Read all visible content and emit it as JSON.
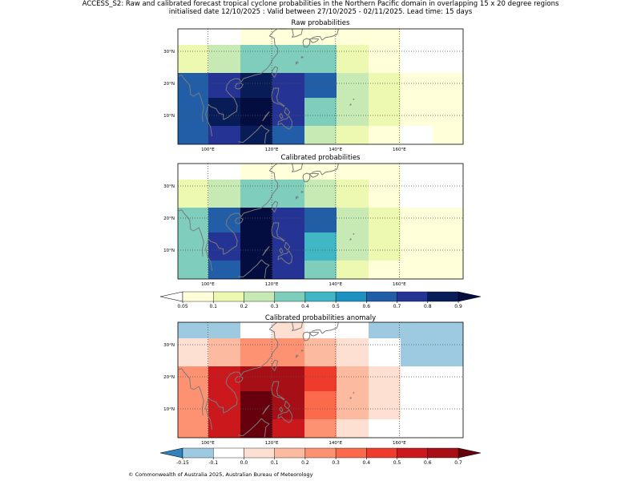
{
  "title_line1": "ACCESS_S2: Raw and calibrated forecast tropical cyclone probabilities in the Northern Pacific domain in overlapping 15 x 20 degree regions",
  "title_line2": "initialised date 12/10/2025 :  Valid between 27/10/2025 - 02/11/2025. Lead time: 15 days",
  "footer": "© Commonwealth of Australia 2025, Australian Bureau of Meteorology",
  "chart_data": [
    {
      "type": "heatmap",
      "title": "Raw probabilities",
      "x_ticks": [
        "100°E",
        "120°E",
        "140°E",
        "160°E"
      ],
      "y_ticks": [
        "30°N",
        "20°N",
        "10°N"
      ],
      "rows_north_to_south": [
        [
          null,
          null,
          0.05,
          0.05,
          0.05,
          0.05,
          0.05,
          null,
          null
        ],
        [
          0.1,
          0.2,
          0.3,
          0.3,
          0.3,
          0.1,
          0.05,
          null,
          null
        ],
        [
          0.6,
          0.7,
          0.8,
          0.7,
          0.6,
          0.2,
          0.1,
          0.05,
          0.05
        ],
        [
          0.6,
          0.8,
          0.9,
          0.7,
          0.3,
          0.2,
          0.1,
          0.05,
          0.05
        ],
        [
          0.6,
          0.7,
          0.8,
          0.6,
          0.2,
          0.1,
          0.05,
          null,
          0.05
        ]
      ]
    },
    {
      "type": "heatmap",
      "title": "Calibrated probabilities",
      "x_ticks": [
        "100°E",
        "120°E",
        "140°E",
        "160°E"
      ],
      "y_ticks": [
        "30°N",
        "20°N",
        "10°N"
      ],
      "rows_north_to_south": [
        [
          null,
          null,
          0.05,
          0.05,
          0.05,
          0.05,
          0.05,
          null,
          null
        ],
        [
          0.1,
          0.2,
          0.3,
          0.3,
          0.2,
          0.1,
          0.05,
          null,
          null
        ],
        [
          0.3,
          0.6,
          0.9,
          0.7,
          0.6,
          0.2,
          0.1,
          0.05,
          0.05
        ],
        [
          0.3,
          0.7,
          0.9,
          0.7,
          0.4,
          0.2,
          0.1,
          0.05,
          0.05
        ],
        [
          0.3,
          0.6,
          0.9,
          0.7,
          0.3,
          0.1,
          0.05,
          0.05,
          0.05
        ]
      ]
    },
    {
      "type": "heatmap",
      "title": "Calibrated probabilities anomaly",
      "x_ticks": [
        "100°E",
        "120°E",
        "140°E",
        "160°E"
      ],
      "y_ticks": [
        "30°N",
        "20°N",
        "10°N"
      ],
      "rows_north_to_south": [
        [
          -0.15,
          -0.15,
          -0.1,
          0.0,
          -0.1,
          -0.1,
          -0.15,
          -0.15,
          -0.15
        ],
        [
          0.0,
          0.1,
          0.2,
          0.2,
          0.1,
          0.0,
          -0.1,
          -0.15,
          -0.15
        ],
        [
          0.2,
          0.5,
          0.6,
          0.6,
          0.4,
          0.1,
          0.0,
          -0.1,
          -0.1
        ],
        [
          0.2,
          0.5,
          0.7,
          0.6,
          0.3,
          0.1,
          0.0,
          -0.1,
          -0.1
        ],
        [
          0.2,
          0.5,
          0.7,
          0.5,
          0.2,
          0.0,
          -0.1,
          -0.1,
          -0.1
        ]
      ]
    }
  ],
  "prob_colorbar": {
    "boundaries": [
      0.05,
      0.1,
      0.2,
      0.3,
      0.4,
      0.5,
      0.6,
      0.7,
      0.8,
      0.9
    ],
    "labels": [
      "0.05",
      "0.1",
      "0.2",
      "0.3",
      "0.4",
      "0.5",
      "0.6",
      "0.7",
      "0.8",
      "0.9"
    ],
    "colors": [
      "#ffffd9",
      "#edf8b1",
      "#c7e9b4",
      "#7fcdbb",
      "#41b6c4",
      "#1d91c0",
      "#225ea8",
      "#253494",
      "#081d58"
    ],
    "under_color": "#ffffff",
    "over_color": "#030d3f"
  },
  "anom_colorbar": {
    "boundaries": [
      -0.15,
      -0.1,
      0.0,
      0.1,
      0.2,
      0.3,
      0.4,
      0.5,
      0.6,
      0.7
    ],
    "labels": [
      "-0.15",
      "-0.1",
      "0.0",
      "0.1",
      "0.2",
      "0.3",
      "0.4",
      "0.5",
      "0.6",
      "0.7"
    ],
    "colors": [
      "#9ecae1",
      "#ffffff",
      "#fee0d2",
      "#fcbba1",
      "#fc9272",
      "#fb6a4a",
      "#ef3b2c",
      "#cb181d",
      "#a50f15"
    ],
    "under_color": "#3182bd",
    "over_color": "#67000d"
  }
}
